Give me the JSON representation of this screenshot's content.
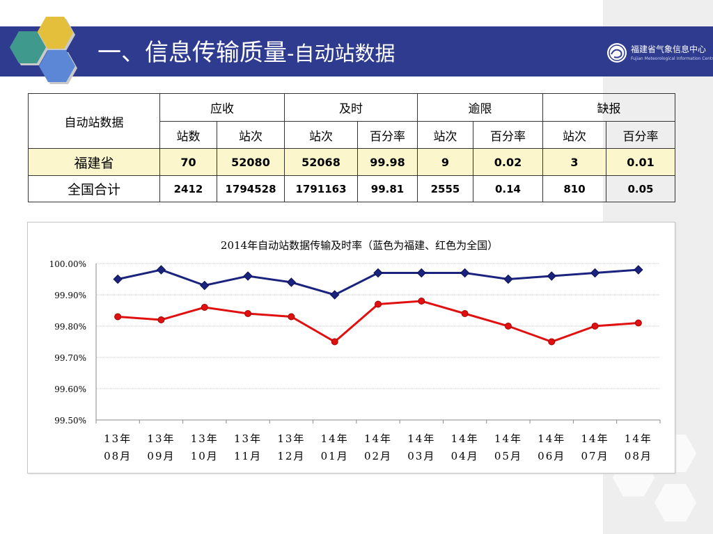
{
  "header": {
    "title_main": "一、信息传输质量",
    "title_sub": "-自动站数据",
    "logo_name": "福建省气象信息中心",
    "logo_en": "Fujian Meteorological Information Centre"
  },
  "table": {
    "corner": "自动站数据",
    "groups": [
      "应收",
      "及时",
      "逾限",
      "缺报"
    ],
    "subheaders": [
      "站数",
      "站次",
      "站次",
      "百分率",
      "站次",
      "百分率",
      "站次",
      "百分率"
    ],
    "rows": [
      {
        "label": "福建省",
        "values": [
          "70",
          "52080",
          "52068",
          "99.98",
          "9",
          "0.02",
          "3",
          "0.01"
        ]
      },
      {
        "label": "全国合计",
        "values": [
          "2412",
          "1794528",
          "1791163",
          "99.81",
          "2555",
          "0.14",
          "810",
          "0.05"
        ]
      }
    ]
  },
  "chart_data": {
    "type": "line",
    "title": "2014年自动站数据传输及时率（蓝色为福建、红色为全国）",
    "categories": [
      [
        "13年",
        "08月"
      ],
      [
        "13年",
        "09月"
      ],
      [
        "13年",
        "10月"
      ],
      [
        "13年",
        "11月"
      ],
      [
        "13年",
        "12月"
      ],
      [
        "14年",
        "01月"
      ],
      [
        "14年",
        "02月"
      ],
      [
        "14年",
        "03月"
      ],
      [
        "14年",
        "04月"
      ],
      [
        "14年",
        "05月"
      ],
      [
        "14年",
        "06月"
      ],
      [
        "14年",
        "07月"
      ],
      [
        "14年",
        "08月"
      ]
    ],
    "series": [
      {
        "color": "#1a237e",
        "marker": "diamond",
        "values": [
          99.95,
          99.98,
          99.93,
          99.96,
          99.94,
          99.9,
          99.97,
          99.97,
          99.97,
          99.95,
          99.96,
          99.97,
          99.98
        ]
      },
      {
        "color": "#e01010",
        "marker": "circle",
        "values": [
          99.83,
          99.82,
          99.86,
          99.84,
          99.83,
          99.75,
          99.87,
          99.88,
          99.84,
          99.8,
          99.75,
          99.8,
          99.81
        ]
      }
    ],
    "ylim": [
      99.5,
      100.0
    ],
    "yticks": [
      "99.50%",
      "99.60%",
      "99.70%",
      "99.80%",
      "99.90%",
      "100.00%"
    ],
    "grid": true,
    "legend": "none"
  }
}
